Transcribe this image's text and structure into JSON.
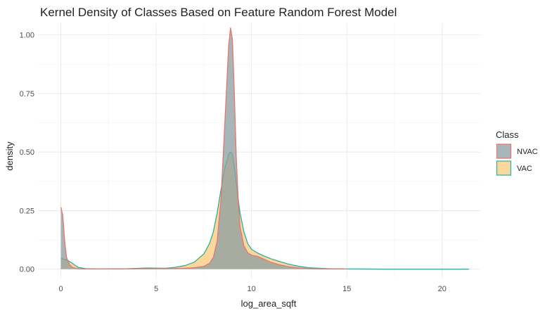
{
  "chart_data": {
    "type": "area",
    "title": "Kernel Density of Classes Based on Feature Random Forest Model",
    "xlabel": "log_area_sqft",
    "ylabel": "density",
    "xlim": [
      -1.2,
      22
    ],
    "ylim": [
      -0.04,
      1.05
    ],
    "x_ticks": [
      0,
      5,
      10,
      15,
      20
    ],
    "x_tick_labels": [
      "0",
      "5",
      "10",
      "15",
      "20"
    ],
    "y_ticks": [
      0,
      0.25,
      0.5,
      0.75,
      1.0
    ],
    "y_tick_labels": [
      "0.00",
      "0.25",
      "0.50",
      "0.75",
      "1.00"
    ],
    "grid": true,
    "legend": {
      "title": "Class",
      "placement": "right"
    },
    "series": [
      {
        "name": "NVAC",
        "fill": "#8c9ea1",
        "stroke": "#e8756a",
        "points": [
          [
            0,
            0.265
          ],
          [
            0.1,
            0.23
          ],
          [
            0.2,
            0.12
          ],
          [
            0.3,
            0.05
          ],
          [
            0.45,
            0.02
          ],
          [
            0.6,
            0.008
          ],
          [
            0.8,
            0.003
          ],
          [
            1.2,
            0.001
          ],
          [
            3,
            0.001
          ],
          [
            4.5,
            0.002
          ],
          [
            5.5,
            0.002
          ],
          [
            6.5,
            0.004
          ],
          [
            7,
            0.006
          ],
          [
            7.5,
            0.012
          ],
          [
            7.8,
            0.025
          ],
          [
            8.0,
            0.05
          ],
          [
            8.2,
            0.12
          ],
          [
            8.4,
            0.3
          ],
          [
            8.6,
            0.62
          ],
          [
            8.8,
            0.95
          ],
          [
            8.9,
            1.03
          ],
          [
            9.0,
            0.98
          ],
          [
            9.1,
            0.75
          ],
          [
            9.2,
            0.48
          ],
          [
            9.3,
            0.3
          ],
          [
            9.4,
            0.18
          ],
          [
            9.6,
            0.1
          ],
          [
            9.8,
            0.07
          ],
          [
            10.0,
            0.06
          ],
          [
            10.3,
            0.055
          ],
          [
            10.6,
            0.045
          ],
          [
            11.0,
            0.03
          ],
          [
            11.5,
            0.018
          ],
          [
            12.0,
            0.01
          ],
          [
            12.5,
            0.005
          ],
          [
            13.0,
            0.002
          ],
          [
            14,
            0.001
          ],
          [
            15,
            0.001
          ]
        ]
      },
      {
        "name": "VAC",
        "fill": "#fbc97a",
        "stroke": "#20b2a8",
        "points": [
          [
            0,
            0.045
          ],
          [
            0.3,
            0.04
          ],
          [
            0.6,
            0.025
          ],
          [
            0.9,
            0.008
          ],
          [
            1.3,
            0.002
          ],
          [
            2,
            0.001
          ],
          [
            3.5,
            0.002
          ],
          [
            4.5,
            0.005
          ],
          [
            5.5,
            0.004
          ],
          [
            6.0,
            0.008
          ],
          [
            6.5,
            0.015
          ],
          [
            7.0,
            0.03
          ],
          [
            7.5,
            0.065
          ],
          [
            7.8,
            0.11
          ],
          [
            8.0,
            0.16
          ],
          [
            8.2,
            0.24
          ],
          [
            8.4,
            0.34
          ],
          [
            8.6,
            0.43
          ],
          [
            8.8,
            0.49
          ],
          [
            8.9,
            0.5
          ],
          [
            9.0,
            0.49
          ],
          [
            9.1,
            0.44
          ],
          [
            9.2,
            0.37
          ],
          [
            9.3,
            0.3
          ],
          [
            9.4,
            0.24
          ],
          [
            9.6,
            0.16
          ],
          [
            9.8,
            0.11
          ],
          [
            10.0,
            0.085
          ],
          [
            10.3,
            0.07
          ],
          [
            10.6,
            0.058
          ],
          [
            11.0,
            0.045
          ],
          [
            11.5,
            0.032
          ],
          [
            12.0,
            0.02
          ],
          [
            12.5,
            0.012
          ],
          [
            13.0,
            0.006
          ],
          [
            14.0,
            0.002
          ],
          [
            15.0,
            0.001
          ],
          [
            17.0,
            0.0
          ],
          [
            21.4,
            0.0
          ]
        ]
      }
    ]
  }
}
